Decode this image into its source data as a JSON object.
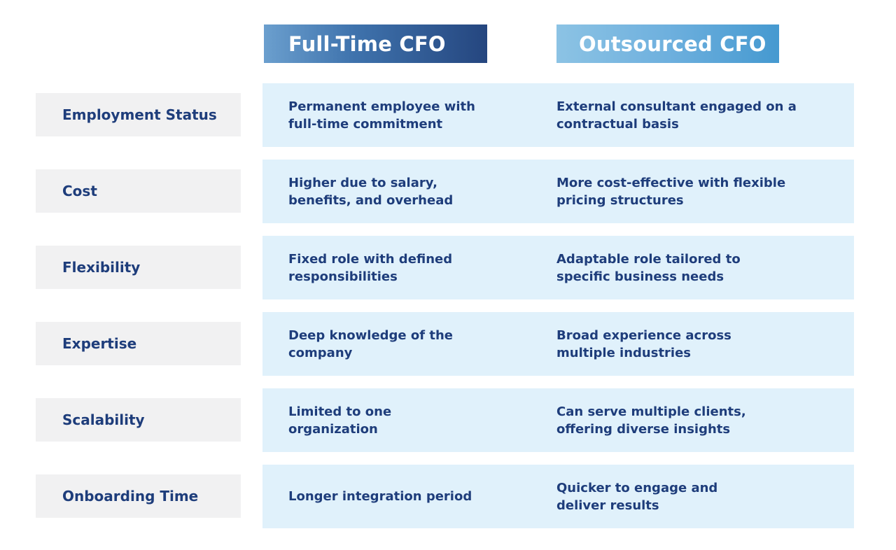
{
  "headers": {
    "full_time": "Full-Time CFO",
    "outsourced": "Outsourced CFO"
  },
  "rows": [
    {
      "label": "Employment Status",
      "full_time": "Permanent employee with full-time commitment",
      "outsourced": "External consultant engaged on a contractual basis"
    },
    {
      "label": "Cost",
      "full_time": "Higher due to salary, benefits, and overhead",
      "outsourced": "More cost-effective with flexible pricing structures"
    },
    {
      "label": "Flexibility",
      "full_time": "Fixed role with defined responsibilities",
      "outsourced": "Adaptable role tailored to specific business needs"
    },
    {
      "label": "Expertise",
      "full_time": "Deep knowledge of the company",
      "outsourced": "Broad experience across multiple industries"
    },
    {
      "label": "Scalability",
      "full_time": "Limited to one organization",
      "outsourced": "Can serve multiple clients, offering diverse insights"
    },
    {
      "label": "Onboarding Time",
      "full_time": "Longer integration period",
      "outsourced": "Quicker to engage and deliver results"
    }
  ]
}
